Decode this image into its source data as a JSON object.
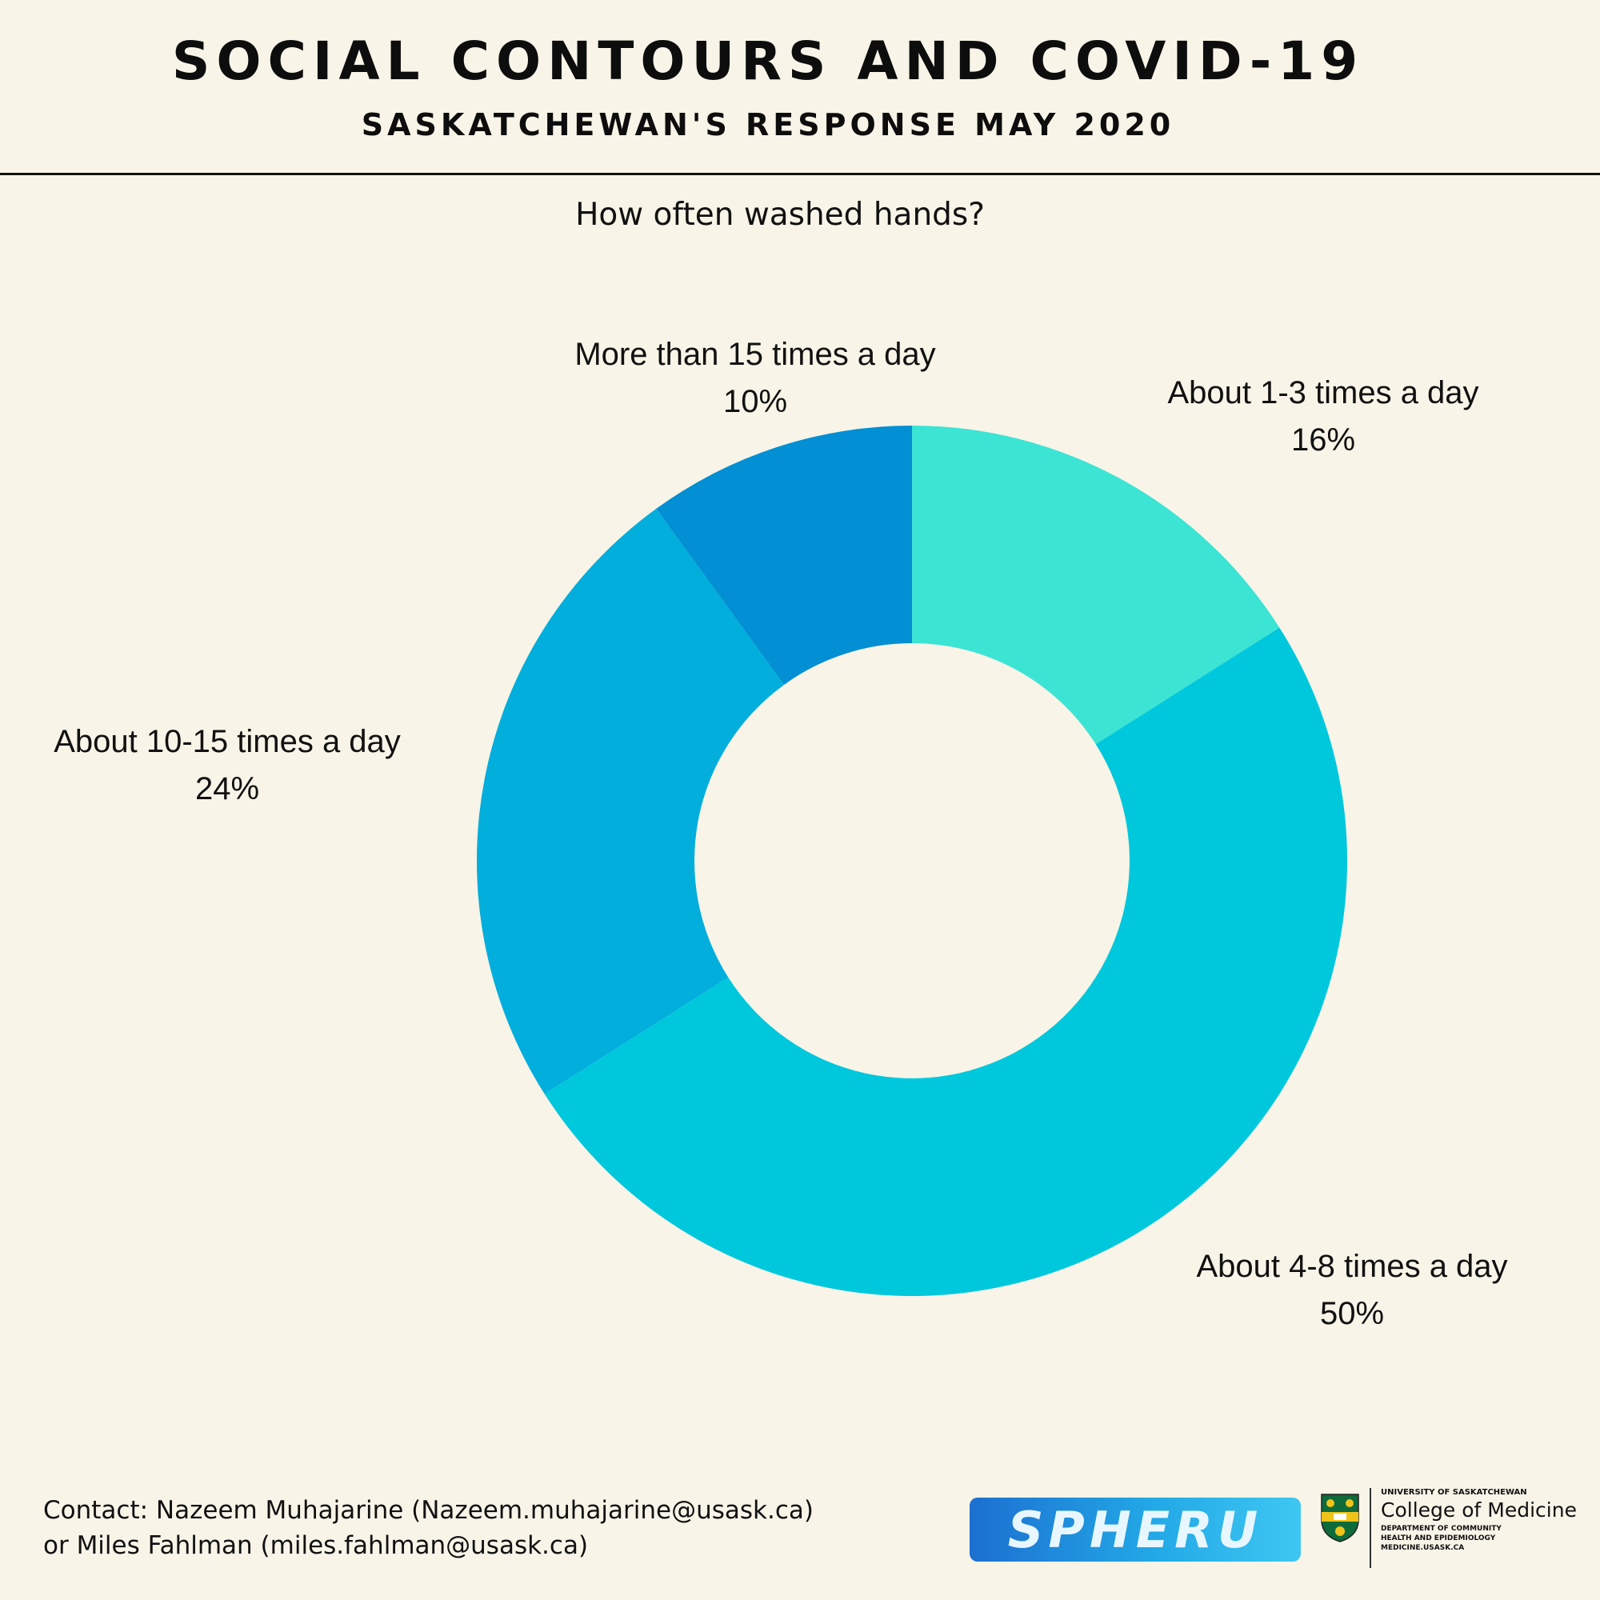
{
  "header": {
    "title": "SOCIAL CONTOURS AND COVID-19",
    "subtitle": "SASKATCHEWAN'S RESPONSE MAY 2020"
  },
  "chart_data": {
    "type": "pie",
    "variant": "donut",
    "title": "How often washed hands?",
    "categories": [
      "About 1-3 times a day",
      "About 4-8 times a day",
      "About 10-15 times a day",
      "More than 15 times a day"
    ],
    "values": [
      16,
      50,
      24,
      10
    ],
    "value_labels": [
      "16%",
      "50%",
      "24%",
      "10%"
    ],
    "unit": "%",
    "colors": [
      "#3ce4d4",
      "#00c8dc",
      "#01aedc",
      "#028fd3"
    ],
    "legend": "none",
    "start": "top",
    "direction": "clockwise"
  },
  "footer": {
    "contact_line1": "Contact: Nazeem Muhajarine (Nazeem.muhajarine@usask.ca)",
    "contact_line2": "or Miles Fahlman (miles.fahlman@usask.ca)",
    "spheru_logo_text": "SPHERU",
    "usask_university": "UNIVERSITY OF SASKATCHEWAN",
    "usask_college": "College of Medicine",
    "usask_dept_line1": "DEPARTMENT OF COMMUNITY",
    "usask_dept_line2": "HEALTH AND EPIDEMIOLOGY",
    "usask_dept_line3": "MEDICINE.USASK.CA",
    "colors": {
      "shield_green": "#0f6b3a",
      "shield_gold": "#f0c419"
    }
  }
}
